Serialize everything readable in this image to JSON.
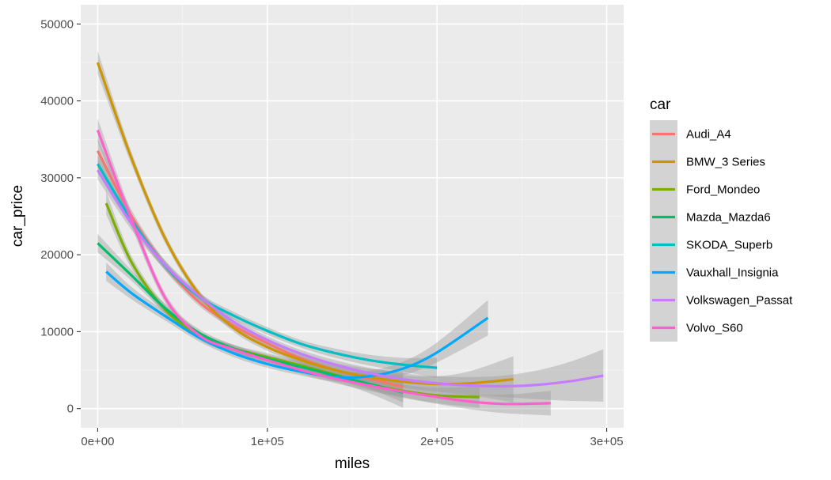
{
  "chart_data": {
    "type": "line",
    "xlabel": "miles",
    "ylabel": "car_price",
    "xlim": [
      -10000,
      310000
    ],
    "ylim": [
      -2500,
      52500
    ],
    "x_ticks": [
      0,
      100000,
      200000,
      300000
    ],
    "x_tick_labels": [
      "0e+00",
      "1e+05",
      "2e+05",
      "3e+05"
    ],
    "y_ticks": [
      0,
      10000,
      20000,
      30000,
      40000,
      50000
    ],
    "y_tick_labels": [
      "0",
      "10000",
      "20000",
      "30000",
      "40000",
      "50000"
    ],
    "grid": true,
    "legend": {
      "title": "car",
      "position": "right"
    },
    "series": [
      {
        "name": "Audi_A4",
        "color": "#F8766D",
        "x": [
          0,
          20000,
          40000,
          60000,
          80000,
          100000,
          120000,
          140000,
          160000,
          180000
        ],
        "y": [
          33500,
          25000,
          18500,
          13800,
          10800,
          8500,
          6500,
          5000,
          3900,
          2800
        ],
        "ribbon": [
          1500,
          800,
          600,
          500,
          500,
          600,
          700,
          900,
          1300,
          2000
        ]
      },
      {
        "name": "BMW_3 Series",
        "color": "#CD9600",
        "x": [
          0,
          20000,
          40000,
          60000,
          80000,
          100000,
          120000,
          140000,
          160000,
          180000,
          200000,
          220000,
          245000
        ],
        "y": [
          45000,
          32500,
          22000,
          14800,
          10500,
          8000,
          6300,
          5000,
          4100,
          3500,
          3200,
          3300,
          3800
        ],
        "ribbon": [
          1500,
          800,
          600,
          500,
          500,
          500,
          500,
          600,
          700,
          800,
          1000,
          1600,
          3000
        ]
      },
      {
        "name": "Ford_Mondeo",
        "color": "#7CAE00",
        "x": [
          5000,
          20000,
          40000,
          60000,
          80000,
          100000,
          120000,
          140000,
          160000,
          180000,
          200000,
          225000
        ],
        "y": [
          26700,
          19000,
          12800,
          9500,
          7800,
          6700,
          5600,
          4400,
          3200,
          2300,
          1700,
          1500
        ],
        "ribbon": [
          1500,
          800,
          600,
          500,
          500,
          500,
          500,
          600,
          700,
          800,
          1000,
          1400
        ]
      },
      {
        "name": "Mazda_Mazda6",
        "color": "#00BE67",
        "x": [
          0,
          20000,
          40000,
          60000,
          80000,
          100000,
          120000,
          140000,
          160000,
          180000
        ],
        "y": [
          21500,
          17300,
          13000,
          9800,
          7800,
          6500,
          5400,
          4300,
          3200,
          2100
        ],
        "ribbon": [
          1200,
          700,
          600,
          500,
          500,
          500,
          600,
          800,
          1200,
          2000
        ]
      },
      {
        "name": "SKODA_Superb",
        "color": "#00BFC4",
        "x": [
          0,
          20000,
          40000,
          60000,
          80000,
          100000,
          120000,
          140000,
          160000,
          180000,
          200000
        ],
        "y": [
          31800,
          24500,
          18500,
          14500,
          12100,
          10100,
          8400,
          7200,
          6300,
          5700,
          5300
        ],
        "ribbon": [
          1200,
          800,
          600,
          500,
          500,
          500,
          500,
          600,
          700,
          900,
          1300
        ]
      },
      {
        "name": "Vauxhall_Insignia",
        "color": "#00A9FF",
        "x": [
          5000,
          20000,
          40000,
          60000,
          80000,
          100000,
          120000,
          140000,
          160000,
          180000,
          200000,
          230000
        ],
        "y": [
          17800,
          15000,
          12000,
          9200,
          7200,
          5800,
          4800,
          4100,
          4200,
          5200,
          7300,
          11800
        ],
        "ribbon": [
          1200,
          800,
          600,
          500,
          500,
          500,
          500,
          600,
          700,
          900,
          1300,
          2300
        ]
      },
      {
        "name": "Volkswagen_Passat",
        "color": "#C77CFF",
        "x": [
          0,
          20000,
          40000,
          60000,
          80000,
          100000,
          120000,
          140000,
          160000,
          180000,
          200000,
          220000,
          240000,
          260000,
          280000,
          298000
        ],
        "y": [
          31000,
          24000,
          18600,
          14600,
          11300,
          8900,
          7100,
          5700,
          4600,
          3800,
          3300,
          3000,
          2900,
          3100,
          3600,
          4300
        ],
        "ribbon": [
          1200,
          800,
          600,
          500,
          500,
          500,
          500,
          600,
          700,
          800,
          900,
          1100,
          1400,
          1900,
          2600,
          3400
        ]
      },
      {
        "name": "Volvo_S60",
        "color": "#FF61CC",
        "x": [
          0,
          20000,
          40000,
          60000,
          80000,
          100000,
          120000,
          140000,
          160000,
          180000,
          200000,
          220000,
          240000,
          267000
        ],
        "y": [
          36200,
          24500,
          14300,
          9500,
          7700,
          6300,
          5000,
          3900,
          3000,
          2200,
          1500,
          900,
          600,
          700
        ],
        "ribbon": [
          1500,
          900,
          600,
          500,
          500,
          500,
          500,
          600,
          700,
          800,
          900,
          1000,
          1200,
          1600
        ]
      }
    ]
  }
}
